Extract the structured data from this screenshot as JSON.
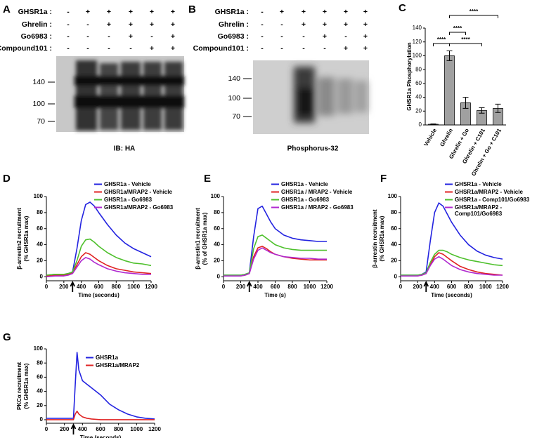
{
  "blots": [
    {
      "panel": "A",
      "caption": "IB: HA",
      "markers": [
        140,
        100,
        70
      ],
      "rows": [
        {
          "label": "GHSR1a :",
          "cells": [
            "-",
            "+",
            "+",
            "+",
            "+",
            "+"
          ]
        },
        {
          "label": "Ghrelin :",
          "cells": [
            "-",
            "-",
            "+",
            "+",
            "+",
            "+"
          ]
        },
        {
          "label": "Go6983 :",
          "cells": [
            "-",
            "-",
            "-",
            "+",
            "-",
            "+"
          ]
        },
        {
          "label": "Compound101 :",
          "cells": [
            "-",
            "-",
            "-",
            "-",
            "+",
            "+"
          ]
        }
      ]
    },
    {
      "panel": "B",
      "caption": "Phosphorus-32",
      "markers": [
        140,
        100,
        70
      ],
      "rows": [
        {
          "label": "GHSR1a :",
          "cells": [
            "-",
            "+",
            "+",
            "+",
            "+",
            "+"
          ]
        },
        {
          "label": "Ghrelin :",
          "cells": [
            "-",
            "-",
            "+",
            "+",
            "+",
            "+"
          ]
        },
        {
          "label": "Go6983 :",
          "cells": [
            "-",
            "-",
            "-",
            "+",
            "-",
            "+"
          ]
        },
        {
          "label": "Compound101 :",
          "cells": [
            "-",
            "-",
            "-",
            "-",
            "+",
            "+"
          ]
        }
      ]
    }
  ],
  "chart_data": [
    {
      "type": "bar",
      "panel": "C",
      "ylabel": [
        "GHSR1a Phosphorylation"
      ],
      "categories": [
        "Vehicle",
        "Ghrelin",
        "Ghrelin + Go",
        "Ghrelin + C101",
        "Ghrelin + Go + C101"
      ],
      "values": [
        1,
        100,
        32,
        21,
        24
      ],
      "errors": [
        0.5,
        7,
        8,
        4,
        6
      ],
      "color": "#a0a0a0",
      "ylim": [
        0,
        140
      ],
      "yticks": [
        0,
        20,
        40,
        60,
        80,
        100,
        120,
        140
      ],
      "annotations": [
        "****",
        "****",
        "****",
        "****"
      ]
    },
    {
      "type": "line",
      "panel": "D",
      "ylabel": [
        "β-arrestin2 recruitment",
        "(% GHSR1a max)"
      ],
      "xlabel": "Time (seconds)",
      "xlim": [
        0,
        1200
      ],
      "xticks": [
        0,
        200,
        400,
        600,
        800,
        1000,
        1200
      ],
      "ylim": [
        -5,
        100
      ],
      "yticks": [
        0,
        20,
        40,
        60,
        80,
        100
      ],
      "stimulus_arrow_x": 300,
      "x": [
        0,
        100,
        200,
        250,
        300,
        350,
        400,
        450,
        500,
        550,
        600,
        700,
        800,
        900,
        1000,
        1100,
        1200
      ],
      "series": [
        {
          "name": "GHSR1a - Vehicle",
          "color": "#2323e0",
          "values": [
            2,
            3,
            3,
            4,
            6,
            35,
            70,
            90,
            93,
            88,
            80,
            65,
            52,
            42,
            35,
            30,
            25
          ]
        },
        {
          "name": "GHSR1a/MRAP2 - Vehicle",
          "color": "#e02323",
          "values": [
            1,
            2,
            2,
            3,
            5,
            15,
            25,
            30,
            28,
            24,
            20,
            14,
            10,
            8,
            6,
            5,
            4
          ]
        },
        {
          "name": "GHSR1a - Go6983",
          "color": "#4ec02c",
          "values": [
            2,
            3,
            3,
            4,
            6,
            20,
            38,
            46,
            47,
            43,
            38,
            30,
            24,
            20,
            17,
            16,
            14
          ]
        },
        {
          "name": "GHSR1a/MRAP2 - Go6983",
          "color": "#b02ad0",
          "values": [
            0,
            1,
            1,
            2,
            4,
            12,
            20,
            24,
            22,
            18,
            15,
            10,
            7,
            5,
            4,
            3,
            3
          ]
        }
      ]
    },
    {
      "type": "line",
      "panel": "E",
      "ylabel": [
        "β-arrestin1 recruitment",
        "(% of GHSR1a max)"
      ],
      "xlabel": "Time (s)",
      "xlim": [
        0,
        1200
      ],
      "xticks": [
        0,
        200,
        400,
        600,
        800,
        1000,
        1200
      ],
      "ylim": [
        -5,
        100
      ],
      "yticks": [
        0,
        20,
        40,
        60,
        80,
        100
      ],
      "stimulus_arrow_x": 300,
      "x": [
        0,
        100,
        200,
        250,
        300,
        350,
        400,
        450,
        500,
        550,
        600,
        700,
        800,
        900,
        1000,
        1100,
        1200
      ],
      "series": [
        {
          "name": "GHSR1a - Vehicle",
          "color": "#2323e0",
          "values": [
            2,
            2,
            2,
            3,
            5,
            50,
            85,
            88,
            78,
            68,
            60,
            52,
            48,
            46,
            45,
            44,
            44
          ]
        },
        {
          "name": "GHSR1a / MRAP2 - Vehicle",
          "color": "#e02323",
          "values": [
            1,
            1,
            1,
            2,
            4,
            25,
            36,
            38,
            35,
            31,
            28,
            25,
            23,
            22,
            21,
            21,
            21
          ]
        },
        {
          "name": "GHSR1a - Go6983",
          "color": "#4ec02c",
          "values": [
            2,
            2,
            2,
            3,
            5,
            35,
            50,
            52,
            48,
            44,
            40,
            36,
            34,
            33,
            33,
            33,
            33
          ]
        },
        {
          "name": "GHSR1a / MRAP2 - Go6983",
          "color": "#b02ad0",
          "values": [
            1,
            1,
            1,
            2,
            4,
            22,
            33,
            36,
            33,
            30,
            28,
            25,
            24,
            23,
            23,
            22,
            22
          ]
        }
      ]
    },
    {
      "type": "line",
      "panel": "F",
      "ylabel": [
        "β-arrestin recruitment",
        "(% GHSR1a max)"
      ],
      "xlabel": "Time (seconds)",
      "xlim": [
        0,
        1200
      ],
      "xticks": [
        0,
        200,
        400,
        600,
        800,
        1000,
        1200
      ],
      "ylim": [
        -5,
        100
      ],
      "yticks": [
        0,
        20,
        40,
        60,
        80,
        100
      ],
      "stimulus_arrow_x": 300,
      "x": [
        0,
        100,
        200,
        250,
        300,
        350,
        400,
        450,
        500,
        550,
        600,
        700,
        800,
        900,
        1000,
        1100,
        1200
      ],
      "series": [
        {
          "name": "GHSR1a - Vehicle",
          "color": "#2323e0",
          "values": [
            2,
            2,
            2,
            3,
            6,
            45,
            80,
            92,
            88,
            78,
            68,
            52,
            40,
            32,
            27,
            24,
            22
          ]
        },
        {
          "name": "GHSR1a/MRAP2 - Vehicle",
          "color": "#e02323",
          "values": [
            1,
            1,
            1,
            2,
            4,
            15,
            25,
            30,
            28,
            24,
            20,
            13,
            9,
            6,
            4,
            3,
            2
          ]
        },
        {
          "name": "GHSR1a - Comp101/Go6983",
          "color": "#4ec02c",
          "values": [
            2,
            2,
            2,
            3,
            5,
            18,
            28,
            33,
            33,
            31,
            28,
            24,
            21,
            19,
            17,
            15,
            14
          ]
        },
        {
          "name": "GHSR1a/MRAP2 - Comp101/Go6983",
          "color": "#b02ad0",
          "values": [
            1,
            1,
            1,
            2,
            4,
            14,
            22,
            25,
            22,
            18,
            14,
            9,
            6,
            4,
            3,
            2,
            2
          ]
        }
      ]
    },
    {
      "type": "line",
      "panel": "G",
      "ylabel": [
        "PKCα recruitment",
        "(% GHSR1a max)"
      ],
      "xlabel": "Time (seconds)",
      "xlim": [
        0,
        1200
      ],
      "xticks": [
        0,
        200,
        400,
        600,
        800,
        1000,
        1200
      ],
      "ylim": [
        -5,
        100
      ],
      "yticks": [
        0,
        20,
        40,
        60,
        80,
        100
      ],
      "stimulus_arrow_x": 300,
      "x": [
        0,
        100,
        200,
        300,
        320,
        340,
        360,
        400,
        450,
        500,
        600,
        700,
        800,
        900,
        1000,
        1100,
        1200
      ],
      "series": [
        {
          "name": "GHSR1a",
          "color": "#2323e0",
          "values": [
            2,
            2,
            2,
            2,
            50,
            95,
            70,
            55,
            50,
            45,
            35,
            22,
            14,
            8,
            4,
            2,
            1
          ]
        },
        {
          "name": "GHSR1a/MRAP2",
          "color": "#e02323",
          "values": [
            0,
            0,
            0,
            0,
            8,
            12,
            8,
            4,
            2,
            1,
            0,
            0,
            0,
            0,
            0,
            0,
            0
          ]
        }
      ]
    }
  ]
}
